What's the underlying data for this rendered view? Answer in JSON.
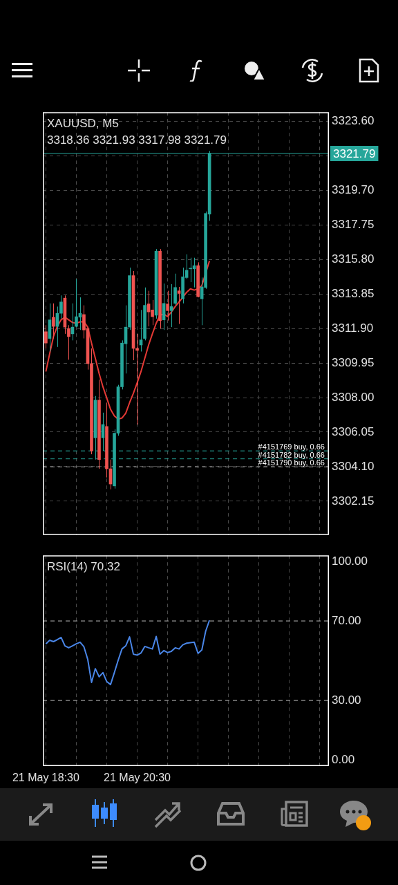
{
  "chart_data": [
    {
      "type": "candlestick",
      "title": "XAUUSD, M5",
      "subtitle": "3318.36 3321.93 3317.98 3321.79",
      "x": [
        "--05-21T18:30",
        "--05-21T18:35",
        "--05-21T18:40",
        "--05-21T18:45",
        "--05-21T18:50",
        "--05-21T18:55",
        "--05-21T19:00",
        "--05-21T19:05",
        "--05-21T19:10",
        "--05-21T19:15",
        "--05-21T19:20",
        "--05-21T19:25",
        "--05-21T19:30",
        "--05-21T19:35",
        "--05-21T19:40",
        "--05-21T19:45",
        "--05-21T19:50",
        "--05-21T19:55",
        "--05-21T20:00",
        "--05-21T20:05",
        "--05-21T20:10",
        "--05-21T20:15",
        "--05-21T20:20",
        "--05-21T20:25",
        "--05-21T20:30",
        "--05-21T20:35",
        "--05-21T20:40",
        "--05-21T20:45",
        "--05-21T20:50",
        "--05-21T20:55",
        "--05-21T21:00",
        "--05-21T21:05",
        "--05-21T21:10",
        "--05-21T21:15",
        "--05-21T21:20",
        "--05-21T21:25",
        "--05-21T21:30",
        "--05-21T21:35",
        "--05-21T21:40",
        "--05-21T21:45",
        "--05-21T21:50",
        "--05-21T21:55",
        "--05-21T22:00",
        "--05-21T22:05"
      ],
      "ohlc": [
        [
          3311.72,
          3312.09,
          3310.78,
          3311.08
        ],
        [
          3311.34,
          3313.32,
          3310.6,
          3312.39
        ],
        [
          3312.54,
          3313.32,
          3311.34,
          3312.02
        ],
        [
          3312.02,
          3313.14,
          3310.86,
          3312.76
        ],
        [
          3312.76,
          3313.77,
          3312.46,
          3313.4
        ],
        [
          3313.62,
          3313.77,
          3311.6,
          3311.98
        ],
        [
          3311.9,
          3312.09,
          3310.14,
          3311.45
        ],
        [
          3311.6,
          3313.32,
          3311.23,
          3311.98
        ],
        [
          3312.02,
          3314.7,
          3311.98,
          3312.57
        ],
        [
          3312.54,
          3313.66,
          3311.82,
          3312.76
        ],
        [
          3312.69,
          3313.21,
          3311.34,
          3311.82
        ],
        [
          3311.9,
          3311.98,
          3309.58,
          3309.92
        ],
        [
          3309.92,
          3310.78,
          3304.8,
          3304.99
        ],
        [
          3305.73,
          3308.09,
          3304.5,
          3307.86
        ],
        [
          3307.86,
          3309.02,
          3303.98,
          3304.5
        ],
        [
          3305.73,
          3307.15,
          3304.99,
          3306.48
        ],
        [
          3306.37,
          3307.71,
          3303.49,
          3303.98
        ],
        [
          3303.98,
          3304.5,
          3302.82,
          3303.12
        ],
        [
          3303.01,
          3306.22,
          3302.86,
          3305.99
        ],
        [
          3305.99,
          3308.72,
          3305.85,
          3308.61
        ],
        [
          3308.61,
          3311.23,
          3308.46,
          3311.08
        ],
        [
          3311.04,
          3313.21,
          3309.36,
          3311.98
        ],
        [
          3311.98,
          3315.34,
          3311.82,
          3314.89
        ],
        [
          3314.89,
          3315.15,
          3310.11,
          3310.78
        ],
        [
          3310.78,
          3311.6,
          3306.48,
          3310.67
        ],
        [
          3310.97,
          3312.95,
          3310.6,
          3311.26
        ],
        [
          3311.34,
          3314.22,
          3311.23,
          3313.21
        ],
        [
          3313.29,
          3314.03,
          3312.02,
          3312.84
        ],
        [
          3312.95,
          3313.51,
          3312.09,
          3312.57
        ],
        [
          3312.65,
          3316.39,
          3312.46,
          3316.27
        ],
        [
          3316.27,
          3316.39,
          3311.9,
          3312.35
        ],
        [
          3312.39,
          3314.44,
          3311.82,
          3313.32
        ],
        [
          3313.29,
          3314.03,
          3312.35,
          3312.91
        ],
        [
          3312.91,
          3314.41,
          3311.98,
          3313.14
        ],
        [
          3313.32,
          3315.0,
          3313.21,
          3314.22
        ],
        [
          3314.03,
          3314.25,
          3312.16,
          3313.88
        ],
        [
          3313.58,
          3315.34,
          3313.32,
          3314.82
        ],
        [
          3314.78,
          3316.09,
          3314.7,
          3315.19
        ],
        [
          3315.27,
          3315.9,
          3314.52,
          3315.3
        ],
        [
          3315.27,
          3315.9,
          3314.22,
          3315.45
        ],
        [
          3315.45,
          3315.64,
          3313.66,
          3313.7
        ],
        [
          3313.58,
          3314.78,
          3312.09,
          3314.25
        ],
        [
          3314.22,
          3318.51,
          3314.14,
          3318.4
        ],
        [
          3318.36,
          3321.93,
          3317.98,
          3321.79
        ]
      ],
      "colors": [
        "#ef5350",
        "#26a69a",
        "#ef5350",
        "#26a69a",
        "#26a69a",
        "#ef5350",
        "#ef5350",
        "#26a69a",
        "#26a69a",
        "#26a69a",
        "#ef5350",
        "#ef5350",
        "#ef5350",
        "#26a69a",
        "#ef5350",
        "#26a69a",
        "#ef5350",
        "#ef5350",
        "#26a69a",
        "#26a69a",
        "#26a69a",
        "#26a69a",
        "#26a69a",
        "#ef5350",
        "#ef5350",
        "#26a69a",
        "#26a69a",
        "#ef5350",
        "#ef5350",
        "#26a69a",
        "#ef5350",
        "#26a69a",
        "#ef5350",
        "#26a69a",
        "#26a69a",
        "#ef5350",
        "#26a69a",
        "#26a69a",
        "#26a69a",
        "#26a69a",
        "#ef5350",
        "#26a69a",
        "#26a69a",
        "#26a69a"
      ],
      "series": [
        {
          "type": "line",
          "color": "#e53935",
          "values": [
            3309.47,
            3310.48,
            3311.45,
            3312.02,
            3312.39,
            3312.54,
            3312.39,
            3312.24,
            3312.2,
            3312.28,
            3312.28,
            3311.98,
            3311.08,
            3310.22,
            3309.36,
            3308.61,
            3307.98,
            3307.34,
            3306.97,
            3306.78,
            3306.85,
            3307.12,
            3307.71,
            3308.24,
            3308.84,
            3309.47,
            3310.22,
            3310.97,
            3311.6,
            3312.2,
            3312.65,
            3312.72,
            3312.57,
            3312.84,
            3313.14,
            3313.4,
            3313.66,
            3313.95,
            3314.14,
            3314.07,
            3314.14,
            3314.33,
            null,
            3315.72
          ]
        }
      ],
      "xlim": [
        "--05-21T18:26",
        "--05-22T00:42"
      ],
      "xticks": [
        {
          "value": "--05-21T18:30",
          "label": null
        },
        {
          "value": "--05-21T19:10",
          "label": null
        },
        {
          "value": "--05-21T19:50",
          "label": null
        },
        {
          "value": "--05-21T20:30",
          "label": null
        },
        {
          "value": "--05-21T21:10",
          "label": null
        },
        {
          "value": "--05-21T21:50",
          "label": null
        },
        {
          "value": "--05-21T22:30",
          "label": null
        },
        {
          "value": "--05-21T23:10",
          "label": null
        },
        {
          "value": "--05-21T23:50",
          "label": null
        },
        {
          "value": "--05-22T00:30",
          "label": null
        }
      ],
      "ylim": [
        3300.24,
        3324.12
      ],
      "yticks": [
        3302.15,
        {
          "value": 3304.1,
          "label": "3304.10"
        },
        3306.05,
        {
          "value": 3308,
          "label": "3308.00"
        },
        3309.95,
        {
          "value": 3311.9,
          "label": "3311.90"
        },
        3313.85,
        {
          "value": 3315.8,
          "label": "3315.80"
        },
        3317.75,
        {
          "value": 3319.7,
          "label": "3319.70"
        },
        {
          "value": 3321.65,
          "label": null
        },
        {
          "value": 3323.6,
          "label": "3323.60"
        }
      ],
      "grid": true,
      "tick_labels": "y",
      "legend": false,
      "ref_lines": [
        {
          "axis": "y",
          "value": 3321.79,
          "label": "3321.79",
          "color": "#26a69a",
          "line_style": "solid"
        },
        {
          "axis": "y",
          "value": 3304.99,
          "label": "#4151769 buy, 0.66",
          "color": "#26a69a",
          "line_style": "dashed"
        },
        {
          "axis": "y",
          "value": 3304.54,
          "label": "#4151782 buy, 0.66",
          "color": "#26a69a",
          "line_style": "dashed"
        },
        {
          "axis": "y",
          "value": 3304.09,
          "label": "#4151790 buy, 0.66",
          "color": "#9e9e9e",
          "line_style": "dashed"
        }
      ]
    },
    {
      "type": "line",
      "title": "RSI(14) 70.32",
      "x": [
        "--05-21T18:30",
        "--05-21T18:35",
        "--05-21T18:40",
        "--05-21T18:45",
        "--05-21T18:50",
        "--05-21T18:55",
        "--05-21T19:00",
        "--05-21T19:05",
        "--05-21T19:10",
        "--05-21T19:15",
        "--05-21T19:20",
        "--05-21T19:25",
        "--05-21T19:30",
        "--05-21T19:35",
        "--05-21T19:40",
        "--05-21T19:45",
        "--05-21T19:50",
        "--05-21T19:55",
        "--05-21T20:00",
        "--05-21T20:05",
        "--05-21T20:10",
        "--05-21T20:15",
        "--05-21T20:20",
        "--05-21T20:25",
        "--05-21T20:30",
        "--05-21T20:35",
        "--05-21T20:40",
        "--05-21T20:45",
        "--05-21T20:50",
        "--05-21T20:55",
        "--05-21T21:00",
        "--05-21T21:05",
        "--05-21T21:10",
        "--05-21T21:15",
        "--05-21T21:20",
        "--05-21T21:25",
        "--05-21T21:30",
        "--05-21T21:35",
        "--05-21T21:40",
        "--05-21T21:45",
        "--05-21T21:50",
        "--05-21T21:55",
        "--05-21T22:00",
        "--05-21T22:05"
      ],
      "series": [
        {
          "color": "#4a86e8",
          "values": [
            58.5,
            60.3,
            59.6,
            60.6,
            61.7,
            57.5,
            56.5,
            57.5,
            58.5,
            59.3,
            57.0,
            50.7,
            39.1,
            46.0,
            41.9,
            44.0,
            39.5,
            38.0,
            44.0,
            50.2,
            55.9,
            57.5,
            62.0,
            53.3,
            52.8,
            53.9,
            57.2,
            56.5,
            55.9,
            62.2,
            53.3,
            55.1,
            54.1,
            54.7,
            56.5,
            55.9,
            58.0,
            58.8,
            59.1,
            59.3,
            53.7,
            55.4,
            64.8,
            70.32
          ]
        }
      ],
      "xlim": [
        "--05-21T18:26",
        "--05-22T00:42"
      ],
      "xticks": [
        {
          "value": "--05-21T18:30",
          "label": "21 May 18:30"
        },
        {
          "value": "--05-21T19:10",
          "label": null
        },
        {
          "value": "--05-21T19:50",
          "label": null
        },
        {
          "value": "--05-21T20:30",
          "label": "21 May 20:30"
        },
        {
          "value": "--05-21T21:10",
          "label": null
        },
        {
          "value": "--05-21T21:50",
          "label": null
        },
        {
          "value": "--05-21T22:30",
          "label": null
        },
        {
          "value": "--05-21T23:10",
          "label": null
        },
        {
          "value": "--05-21T23:50",
          "label": null
        },
        {
          "value": "--05-22T00:30",
          "label": null
        }
      ],
      "ylim": [
        -3,
        103
      ],
      "yticks": [
        {
          "value": 0,
          "label": "0.00"
        },
        {
          "value": 30,
          "label": "30.00"
        },
        {
          "value": 70,
          "label": "70.00"
        },
        {
          "value": 100,
          "label": "100.00"
        }
      ],
      "grid": "x",
      "legend": false,
      "ref_lines": [
        {
          "axis": "y",
          "value": 70,
          "color": "#bdbdbd",
          "line_style": "dashed"
        },
        {
          "axis": "y",
          "value": 30,
          "color": "#bdbdbd",
          "line_style": "dashed"
        }
      ]
    }
  ]
}
